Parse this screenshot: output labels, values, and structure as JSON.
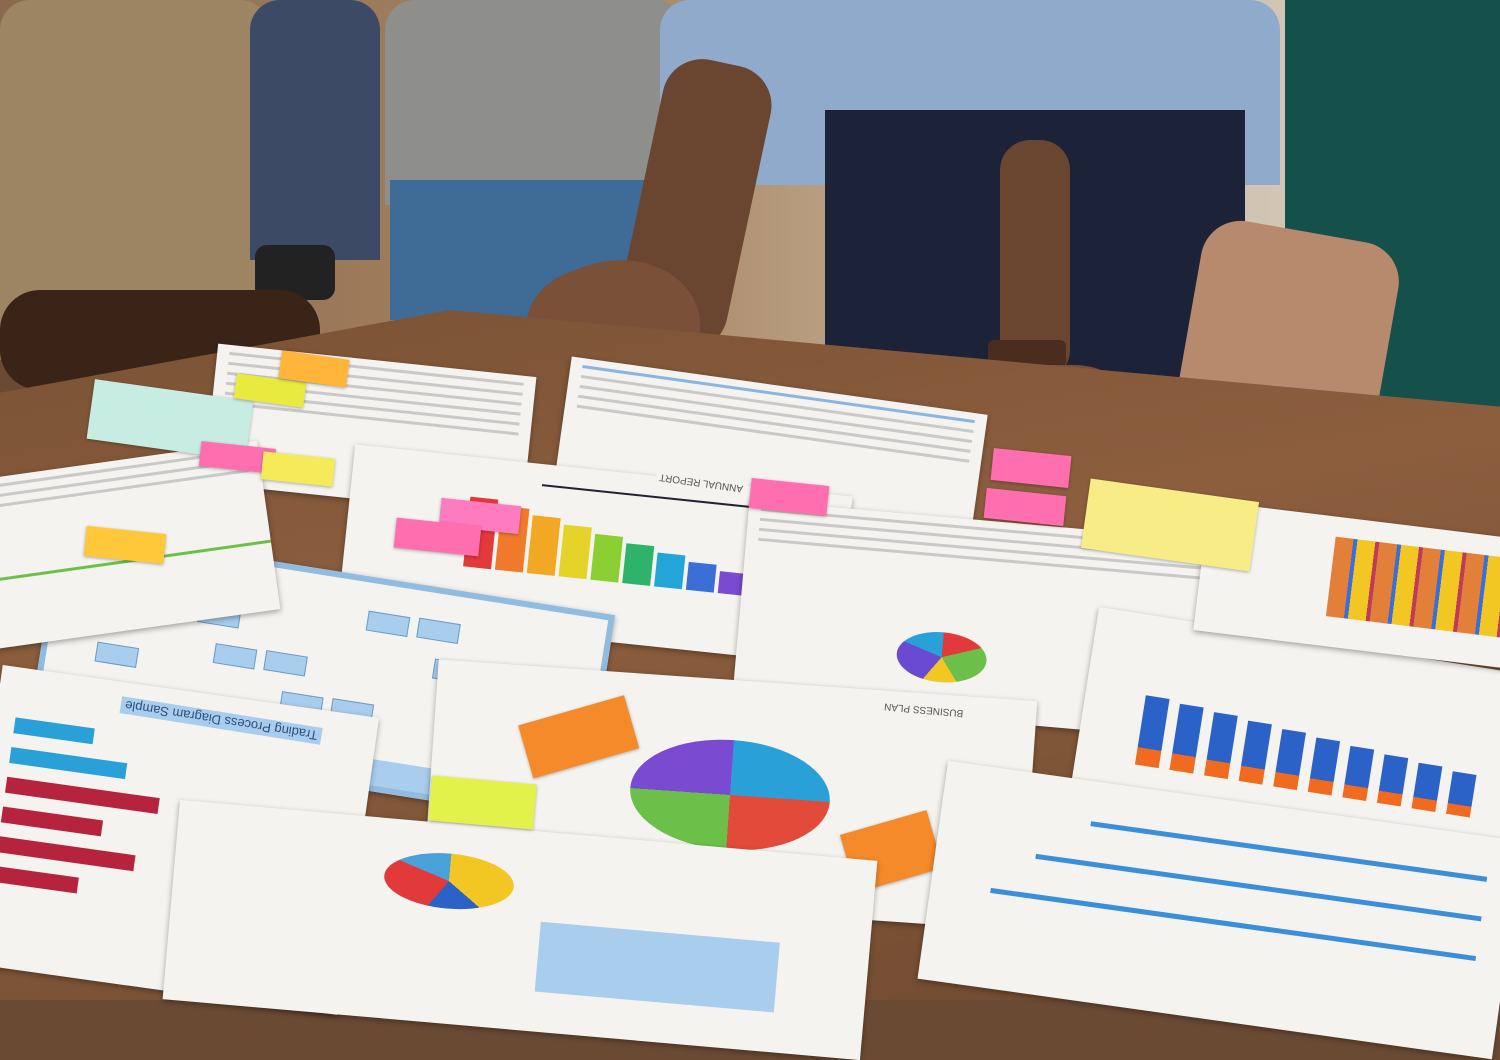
{
  "documents": {
    "flowchart_title": "Trading Process Diagram Sample",
    "annual_report_title": "ANNUAL REPORT",
    "business_plan_title": "BUSINESS PLAN"
  },
  "colors": {
    "table": "#7a5235",
    "paper": "#f4f3ef",
    "sticky_pink": "#ff6fb0",
    "sticky_yellow": "#f4e95a",
    "sticky_orange": "#ffb43a",
    "chart_blue": "#2a62c8",
    "chart_orange": "#f06a1f",
    "chart_red": "#b5243c"
  },
  "rainbow_bars": [
    "#e23a3a",
    "#f07a2a",
    "#f2a823",
    "#e6d32a",
    "#8ccf35",
    "#2fb36b",
    "#22a6d8",
    "#3a6fd8",
    "#7a4ad0"
  ]
}
